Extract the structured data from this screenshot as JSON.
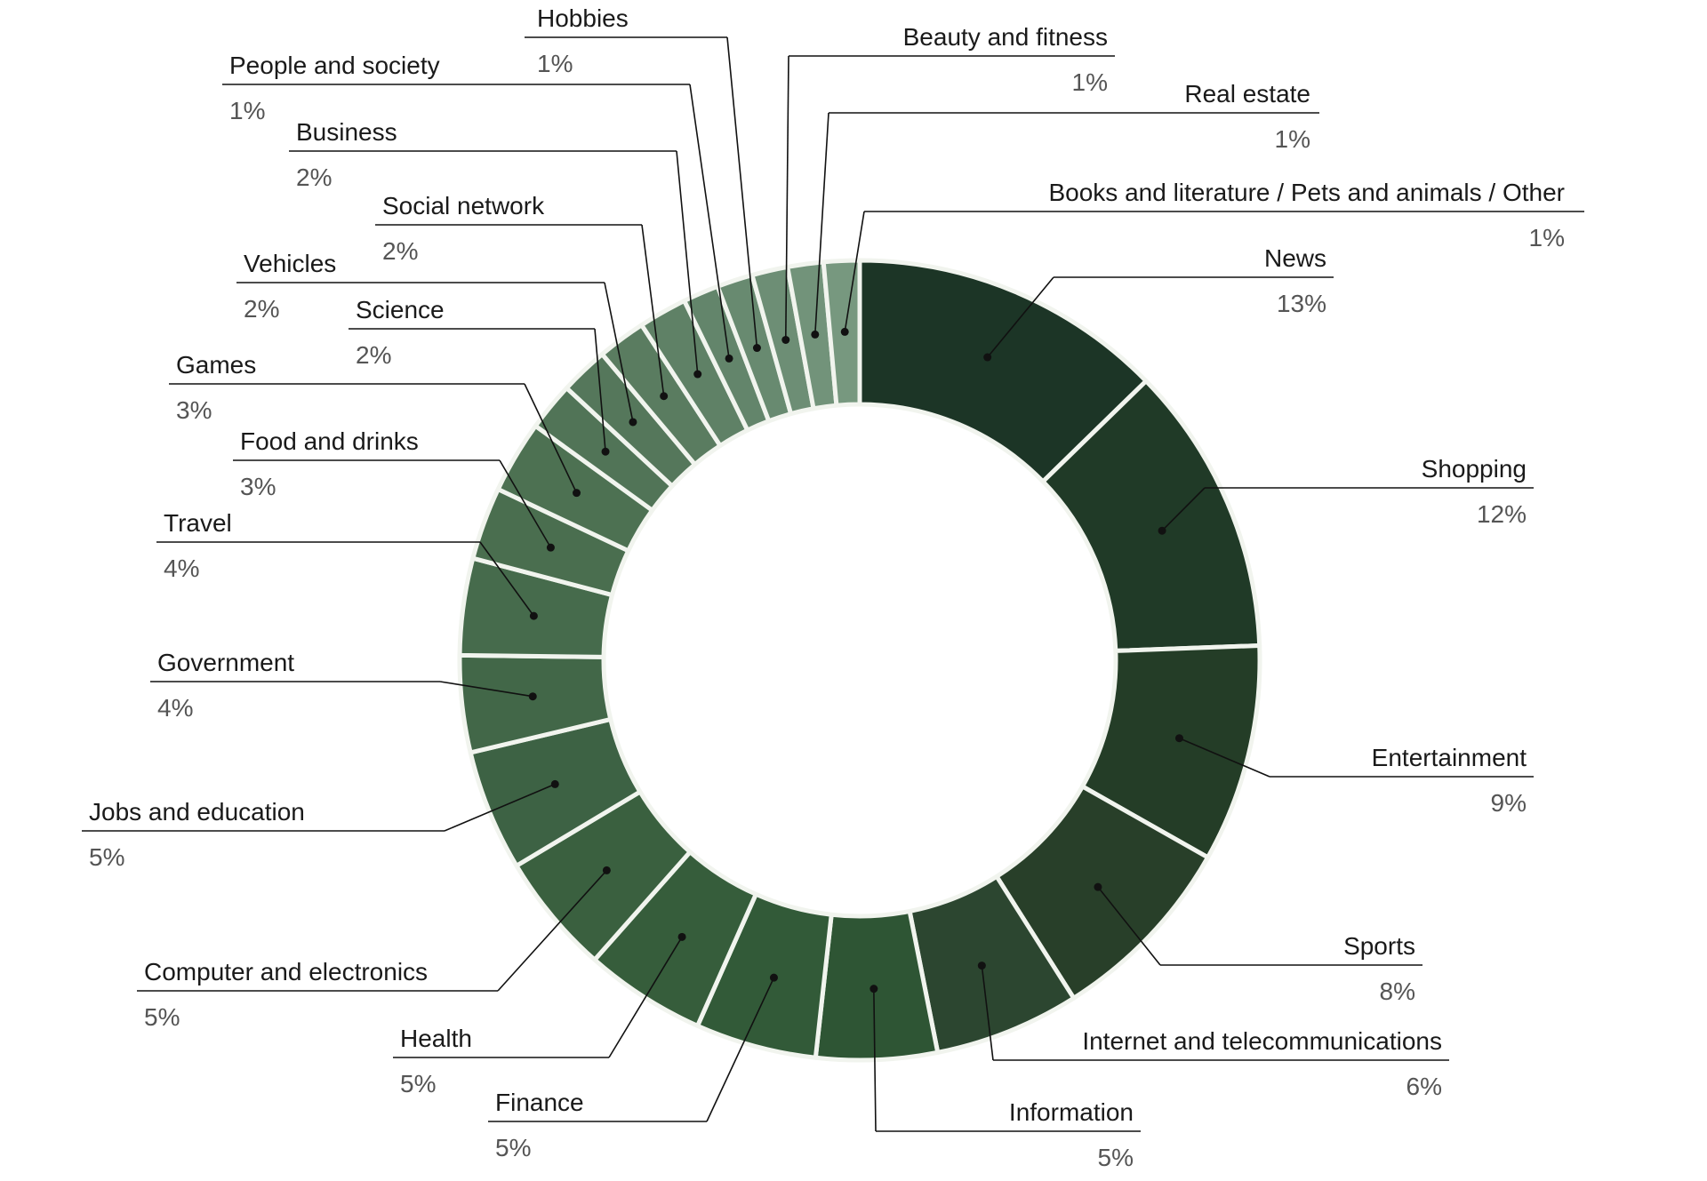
{
  "chart_data": {
    "type": "pie",
    "variant": "donut",
    "title": "",
    "categories": [
      "News",
      "Shopping",
      "Entertainment",
      "Sports",
      "Internet and telecommunications",
      "Information",
      "Finance",
      "Health",
      "Computer and electronics",
      "Jobs and education",
      "Government",
      "Travel",
      "Food and drinks",
      "Games",
      "Science",
      "Vehicles",
      "Social network",
      "Business",
      "People and society",
      "Hobbies",
      "Beauty and fitness",
      "Real estate",
      "Books and literature /  Pets and animals / Other"
    ],
    "values": [
      13,
      12,
      9,
      8,
      6,
      5,
      5,
      5,
      5,
      5,
      4,
      4,
      3,
      3,
      2,
      2,
      2,
      2,
      1,
      1,
      1,
      1,
      1
    ],
    "value_labels": [
      "13%",
      "12%",
      "9%",
      "8%",
      "6%",
      "5%",
      "5%",
      "5%",
      "5%",
      "5%",
      "4%",
      "4%",
      "3%",
      "3%",
      "2%",
      "2%",
      "2%",
      "2%",
      "1%",
      "1%",
      "1%",
      "1%",
      "1%"
    ],
    "colors": [
      "#1c3526",
      "#203a27",
      "#243d27",
      "#283f29",
      "#2c4630",
      "#2e5534",
      "#325a38",
      "#365d3b",
      "#3a603f",
      "#3d6244",
      "#426748",
      "#466b4c",
      "#4a6e4f",
      "#4d7152",
      "#517457",
      "#55775b",
      "#5a7c60",
      "#5f8166",
      "#63856b",
      "#688a70",
      "#6d8e75",
      "#72937a",
      "#77987f"
    ],
    "legend": "none",
    "label_placement": "outside with leader lines"
  }
}
